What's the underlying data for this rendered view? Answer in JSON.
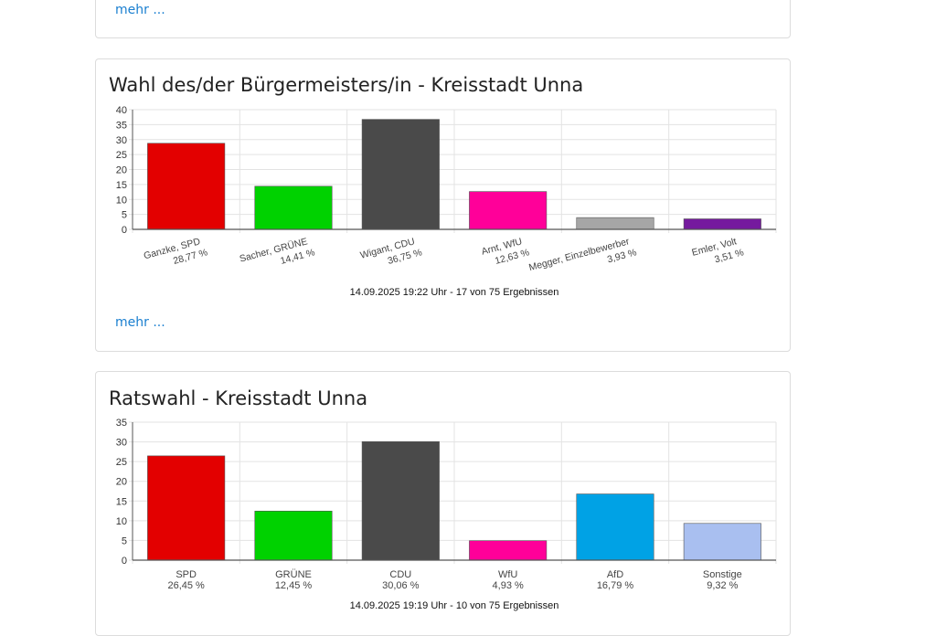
{
  "more_label": "mehr ...",
  "cards": [
    {
      "title": "Wahl des/der Bürgermeisters/in - Kreisstadt Unna",
      "chart_data": {
        "type": "bar",
        "title": "",
        "xlabel": "",
        "ylabel": "",
        "ylim": [
          0,
          40
        ],
        "yticks": [
          0,
          5,
          10,
          15,
          20,
          25,
          30,
          35,
          40
        ],
        "grid": true,
        "rotated_labels": true,
        "categories": [
          "Ganzke, SPD",
          "Sacher, GRÜNE",
          "Wigant, CDU",
          "Arnt, WfU",
          "Megger, Einzelbewerber",
          "Emler, Volt"
        ],
        "value_labels": [
          "28,77 %",
          "14,41 %",
          "36,75 %",
          "12,63 %",
          "3,93 %",
          "3,51 %"
        ],
        "values": [
          28.77,
          14.41,
          36.75,
          12.63,
          3.93,
          3.51
        ],
        "colors": [
          "#e30000",
          "#00d200",
          "#4a4a4a",
          "#ff0099",
          "#a6a6a6",
          "#751a9e"
        ],
        "footer": "14.09.2025 19:22 Uhr - 17 von 75 Ergebnissen"
      }
    },
    {
      "title": "Ratswahl - Kreisstadt Unna",
      "chart_data": {
        "type": "bar",
        "title": "",
        "xlabel": "",
        "ylabel": "",
        "ylim": [
          0,
          35
        ],
        "yticks": [
          0,
          5,
          10,
          15,
          20,
          25,
          30,
          35
        ],
        "grid": true,
        "rotated_labels": false,
        "categories": [
          "SPD",
          "GRÜNE",
          "CDU",
          "WfU",
          "AfD",
          "Sonstige"
        ],
        "value_labels": [
          "26,45 %",
          "12,45 %",
          "30,06 %",
          "4,93 %",
          "16,79 %",
          "9,32 %"
        ],
        "values": [
          26.45,
          12.45,
          30.06,
          4.93,
          16.79,
          9.32
        ],
        "colors": [
          "#e30000",
          "#00d200",
          "#4a4a4a",
          "#ff0099",
          "#00a2e5",
          "#a9bff0"
        ],
        "footer": "14.09.2025 19:19 Uhr - 10 von 75 Ergebnissen"
      }
    }
  ]
}
